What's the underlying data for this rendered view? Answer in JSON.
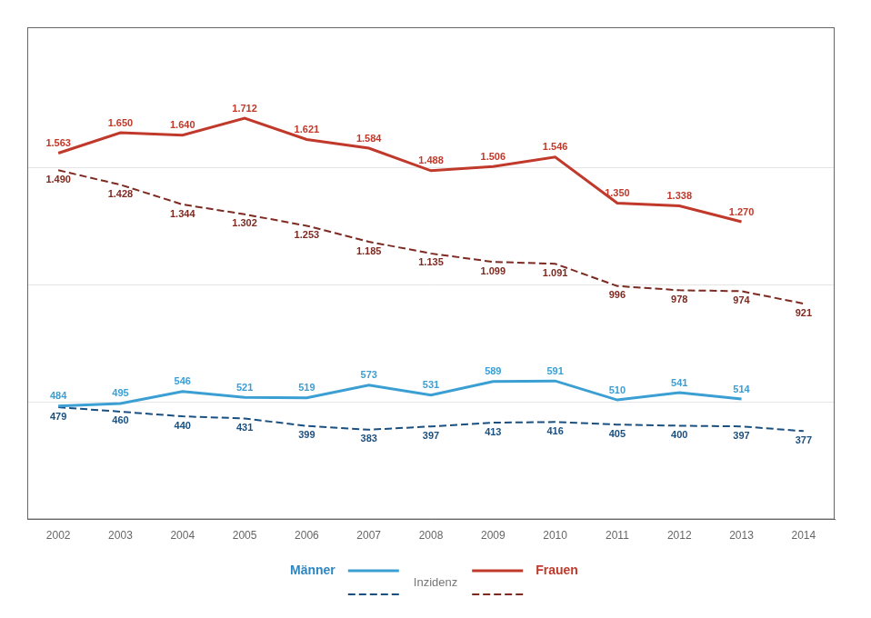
{
  "chart_data": {
    "type": "line",
    "x": [
      2002,
      2003,
      2004,
      2005,
      2006,
      2007,
      2008,
      2009,
      2010,
      2011,
      2012,
      2013,
      2014
    ],
    "xlim": [
      2001.5,
      2014.5
    ],
    "xticks": [
      2002,
      2003,
      2004,
      2005,
      2006,
      2007,
      2008,
      2009,
      2010,
      2011,
      2012,
      2013,
      2014
    ],
    "ylim": [
      0,
      2100
    ],
    "yticks": [
      500,
      1000,
      1500
    ],
    "grid": true,
    "tick_labels": "x",
    "data_labels": true,
    "series": [
      {
        "color": "#3B9FD4",
        "line_style": "solid",
        "values": [
          484,
          495,
          546,
          521,
          519,
          573,
          531,
          589,
          591,
          510,
          541,
          514,
          null
        ]
      },
      {
        "color": "#1A5080",
        "line_style": "dashed",
        "values": [
          479,
          460,
          440,
          431,
          399,
          383,
          397,
          413,
          416,
          405,
          400,
          397,
          377
        ]
      },
      {
        "color": "#C0392B",
        "line_style": "solid",
        "values": [
          1563,
          1650,
          1640,
          1712,
          1621,
          1584,
          1488,
          1506,
          1546,
          1350,
          1338,
          1270,
          null
        ],
        "value_labels": [
          "1.563",
          "1.650",
          "1.640",
          "1.712",
          "1.621",
          "1.584",
          "1.488",
          "1.506",
          "1.546",
          "1.350",
          "1.338",
          "1.270",
          null
        ]
      },
      {
        "color": "#7D2A22",
        "line_style": "dashed",
        "values": [
          1490,
          1428,
          1344,
          1302,
          1253,
          1185,
          1135,
          1099,
          1091,
          996,
          978,
          974,
          921
        ],
        "value_labels": [
          "1.490",
          "1.428",
          "1.344",
          "1.302",
          "1.253",
          "1.185",
          "1.135",
          "1.099",
          "1.091",
          "996",
          "978",
          "974",
          "921"
        ]
      }
    ],
    "annotations": [
      {
        "text": "Männer",
        "color": "#2E86C1"
      },
      {
        "text": "Inzidenz",
        "color": "#777777"
      },
      {
        "text": "Frauen",
        "color": "#C0392B"
      }
    ]
  }
}
